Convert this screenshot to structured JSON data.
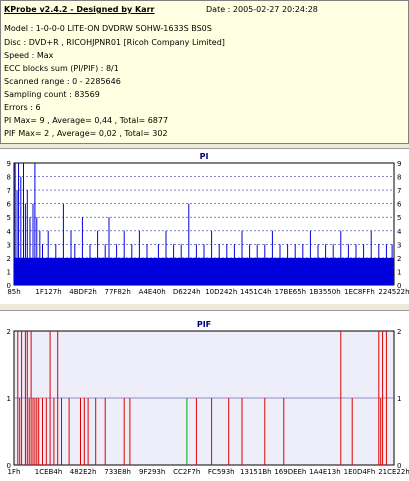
{
  "info": {
    "title": "KProbe v2.4.2 - Designed by Karr",
    "date_label": "Date : 2005-02-27 20:24:28",
    "lines": [
      "Model : 1-0-0-0 LITE-ON DVDRW SOHW-1633S BS0S",
      "Disc : DVD+R , RICOHJPNR01 [Ricoh Company Limited]",
      "Speed : Max",
      "ECC blocks sum (PI/PIF) : 8/1",
      "Scanned range : 0 - 2285646",
      "Sampling count : 83569",
      "Errors : 6",
      "PI Max= 9 , Average= 0,44 , Total= 6877",
      "PIF Max= 2 , Average= 0,02 , Total= 302"
    ]
  },
  "colors": {
    "pi_bar": "#0000dd",
    "pif_bar": "#dd0000",
    "pif_green": "#00aa00",
    "grid": "#3333aa",
    "plot_bg": "#ffffff",
    "plot_bg_pif": "#eeeefa"
  },
  "chart_data": [
    {
      "type": "bar",
      "title": "PI",
      "x_tick_labels": [
        "85h",
        "1F127h",
        "4BDF2h",
        "77F82h",
        "A4E40h",
        "D6224h",
        "10D242h",
        "1451C4h",
        "17BE65h",
        "1B3550h",
        "1EC8FFh",
        "224522h"
      ],
      "ylim": [
        0,
        9
      ],
      "y_ticks": [
        0,
        1,
        2,
        3,
        4,
        5,
        6,
        7,
        8,
        9
      ],
      "grid": true,
      "baseline_level": 2,
      "spikes": [
        {
          "x": 0.003,
          "y": 9
        },
        {
          "x": 0.008,
          "y": 7
        },
        {
          "x": 0.012,
          "y": 9
        },
        {
          "x": 0.018,
          "y": 8
        },
        {
          "x": 0.025,
          "y": 9
        },
        {
          "x": 0.03,
          "y": 6
        },
        {
          "x": 0.035,
          "y": 7
        },
        {
          "x": 0.042,
          "y": 5
        },
        {
          "x": 0.05,
          "y": 6
        },
        {
          "x": 0.055,
          "y": 9
        },
        {
          "x": 0.06,
          "y": 5
        },
        {
          "x": 0.068,
          "y": 4
        },
        {
          "x": 0.075,
          "y": 3
        },
        {
          "x": 0.09,
          "y": 4
        },
        {
          "x": 0.11,
          "y": 3
        },
        {
          "x": 0.13,
          "y": 6
        },
        {
          "x": 0.15,
          "y": 4
        },
        {
          "x": 0.16,
          "y": 3
        },
        {
          "x": 0.18,
          "y": 5
        },
        {
          "x": 0.2,
          "y": 3
        },
        {
          "x": 0.22,
          "y": 4
        },
        {
          "x": 0.24,
          "y": 3
        },
        {
          "x": 0.25,
          "y": 5
        },
        {
          "x": 0.27,
          "y": 3
        },
        {
          "x": 0.29,
          "y": 4
        },
        {
          "x": 0.31,
          "y": 3
        },
        {
          "x": 0.33,
          "y": 4
        },
        {
          "x": 0.35,
          "y": 3
        },
        {
          "x": 0.38,
          "y": 3
        },
        {
          "x": 0.4,
          "y": 4
        },
        {
          "x": 0.42,
          "y": 3
        },
        {
          "x": 0.44,
          "y": 3
        },
        {
          "x": 0.46,
          "y": 6
        },
        {
          "x": 0.48,
          "y": 3
        },
        {
          "x": 0.5,
          "y": 3
        },
        {
          "x": 0.52,
          "y": 4
        },
        {
          "x": 0.54,
          "y": 3
        },
        {
          "x": 0.56,
          "y": 3
        },
        {
          "x": 0.58,
          "y": 3
        },
        {
          "x": 0.6,
          "y": 4
        },
        {
          "x": 0.62,
          "y": 3
        },
        {
          "x": 0.64,
          "y": 3
        },
        {
          "x": 0.66,
          "y": 3
        },
        {
          "x": 0.68,
          "y": 4
        },
        {
          "x": 0.7,
          "y": 3
        },
        {
          "x": 0.72,
          "y": 3
        },
        {
          "x": 0.74,
          "y": 3
        },
        {
          "x": 0.76,
          "y": 3
        },
        {
          "x": 0.78,
          "y": 4
        },
        {
          "x": 0.8,
          "y": 3
        },
        {
          "x": 0.82,
          "y": 3
        },
        {
          "x": 0.84,
          "y": 3
        },
        {
          "x": 0.86,
          "y": 4
        },
        {
          "x": 0.88,
          "y": 3
        },
        {
          "x": 0.9,
          "y": 3
        },
        {
          "x": 0.92,
          "y": 3
        },
        {
          "x": 0.94,
          "y": 4
        },
        {
          "x": 0.96,
          "y": 3
        },
        {
          "x": 0.98,
          "y": 3
        },
        {
          "x": 0.995,
          "y": 3
        }
      ]
    },
    {
      "type": "bar",
      "title": "PIF",
      "x_tick_labels": [
        "1Fh",
        "1CEB4h",
        "482E2h",
        "733E8h",
        "9F293h",
        "CC2F7h",
        "FC593h",
        "13151Bh",
        "169DEEh",
        "1A4E13h",
        "1E0D4Fh",
        "21CE22h"
      ],
      "ylim": [
        0,
        2
      ],
      "y_ticks": [
        0,
        1,
        2
      ],
      "grid": true,
      "bars": [
        {
          "x": 0.01,
          "y": 2
        },
        {
          "x": 0.015,
          "y": 1
        },
        {
          "x": 0.02,
          "y": 2
        },
        {
          "x": 0.03,
          "y": 2
        },
        {
          "x": 0.035,
          "y": 2
        },
        {
          "x": 0.04,
          "y": 1
        },
        {
          "x": 0.045,
          "y": 2
        },
        {
          "x": 0.05,
          "y": 1
        },
        {
          "x": 0.055,
          "y": 1
        },
        {
          "x": 0.06,
          "y": 1
        },
        {
          "x": 0.065,
          "y": 1
        },
        {
          "x": 0.075,
          "y": 1
        },
        {
          "x": 0.085,
          "y": 1
        },
        {
          "x": 0.095,
          "y": 2
        },
        {
          "x": 0.105,
          "y": 1
        },
        {
          "x": 0.115,
          "y": 2
        },
        {
          "x": 0.125,
          "y": 1
        },
        {
          "x": 0.145,
          "y": 1
        },
        {
          "x": 0.175,
          "y": 1
        },
        {
          "x": 0.185,
          "y": 1
        },
        {
          "x": 0.195,
          "y": 1
        },
        {
          "x": 0.215,
          "y": 1
        },
        {
          "x": 0.24,
          "y": 1
        },
        {
          "x": 0.29,
          "y": 1
        },
        {
          "x": 0.305,
          "y": 1
        },
        {
          "x": 0.455,
          "y": 1,
          "green": true
        },
        {
          "x": 0.48,
          "y": 1
        },
        {
          "x": 0.52,
          "y": 1
        },
        {
          "x": 0.565,
          "y": 1
        },
        {
          "x": 0.6,
          "y": 1
        },
        {
          "x": 0.66,
          "y": 1
        },
        {
          "x": 0.71,
          "y": 1
        },
        {
          "x": 0.86,
          "y": 2
        },
        {
          "x": 0.89,
          "y": 1
        },
        {
          "x": 0.96,
          "y": 2
        },
        {
          "x": 0.965,
          "y": 1
        },
        {
          "x": 0.97,
          "y": 2
        },
        {
          "x": 0.98,
          "y": 2
        }
      ]
    }
  ]
}
